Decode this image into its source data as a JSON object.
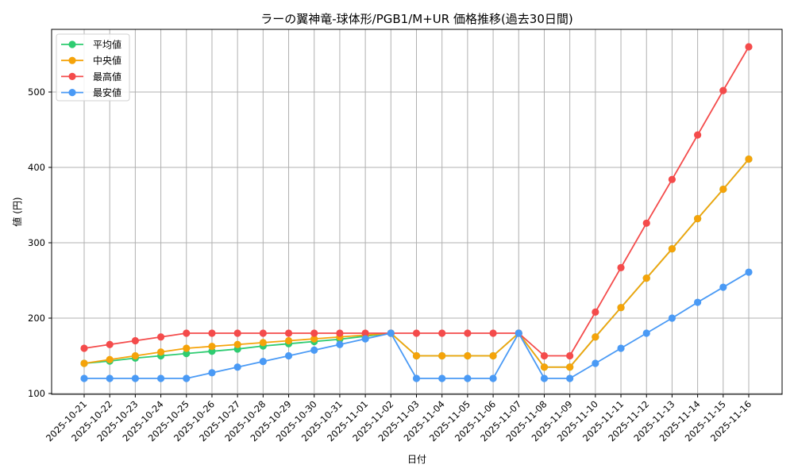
{
  "chart_data": {
    "type": "line",
    "title": "ラーの翼神竜-球体形/PGB1/M+UR 価格推移(過去30日間)",
    "xlabel": "日付",
    "ylabel": "値 (円)",
    "ylim": [
      99,
      583
    ],
    "yticks": [
      100,
      200,
      300,
      400,
      500
    ],
    "grid": true,
    "legend_position": "upper left",
    "categories": [
      "2025-10-21",
      "2025-10-22",
      "2025-10-23",
      "2025-10-24",
      "2025-10-25",
      "2025-10-26",
      "2025-10-27",
      "2025-10-28",
      "2025-10-29",
      "2025-10-30",
      "2025-10-31",
      "2025-11-01",
      "2025-11-02",
      "2025-11-03",
      "2025-11-04",
      "2025-11-05",
      "2025-11-06",
      "2025-11-07",
      "2025-11-08",
      "2025-11-09",
      "2025-11-10",
      "2025-11-11",
      "2025-11-12",
      "2025-11-13",
      "2025-11-14",
      "2025-11-15",
      "2025-11-16"
    ],
    "series": [
      {
        "name": "平均値",
        "color": "#2ecc71",
        "values": [
          140,
          143,
          147,
          150,
          153,
          156,
          159,
          163,
          166,
          169,
          172,
          176,
          180,
          150,
          150,
          150,
          150,
          180,
          135,
          135,
          175,
          214,
          253,
          292,
          332,
          371,
          411
        ]
      },
      {
        "name": "中央値",
        "color": "#f5a30a",
        "values": [
          140,
          145,
          150,
          155,
          160,
          162.5,
          165,
          167.5,
          170,
          172.5,
          175,
          177.5,
          180,
          150,
          150,
          150,
          150,
          180,
          135,
          135,
          175,
          214,
          253,
          292,
          332,
          371,
          411
        ]
      },
      {
        "name": "最高値",
        "color": "#f44b4b",
        "values": [
          160,
          165,
          170,
          175,
          180,
          180,
          180,
          180,
          180,
          180,
          180,
          180,
          180,
          180,
          180,
          180,
          180,
          180,
          150,
          150,
          208,
          267,
          326,
          384,
          443,
          502,
          560
        ]
      },
      {
        "name": "最安値",
        "color": "#4a9af5",
        "values": [
          120,
          120,
          120,
          120,
          120,
          127.5,
          135,
          142.5,
          150,
          157.5,
          165,
          172.5,
          180,
          120,
          120,
          120,
          120,
          180,
          120,
          120,
          140,
          160,
          180,
          200,
          221,
          241,
          261
        ]
      }
    ]
  }
}
